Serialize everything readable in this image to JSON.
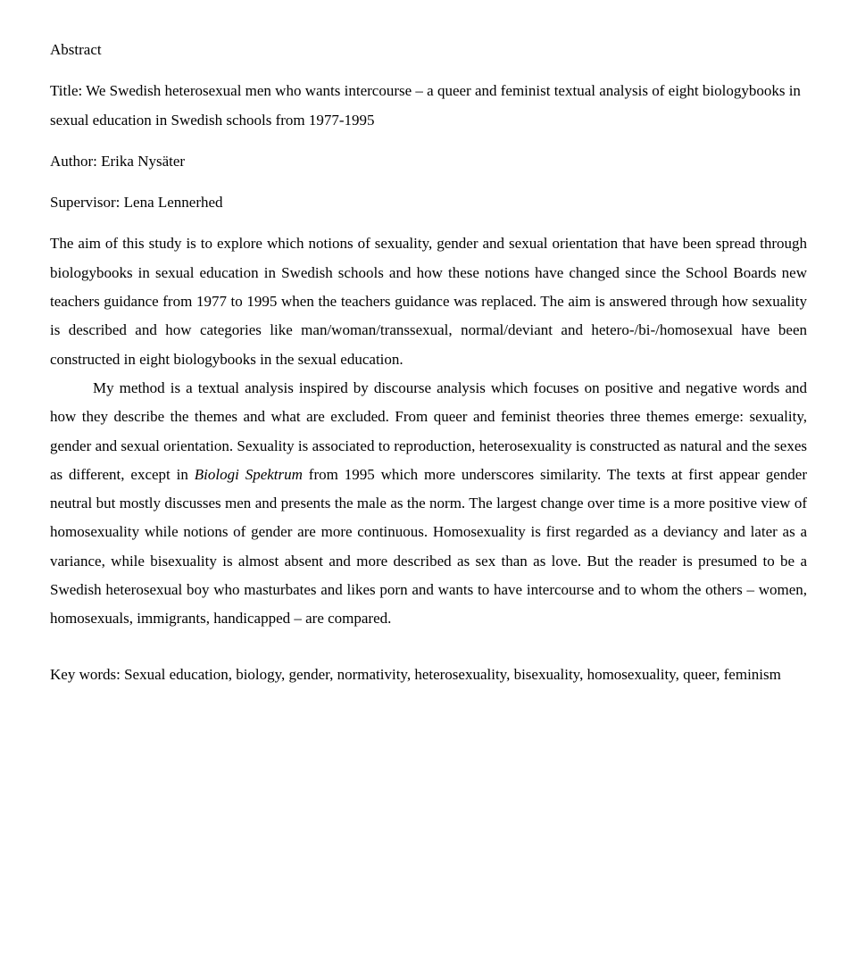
{
  "abstract_label": "Abstract",
  "title_line": "Title: We Swedish heterosexual men who wants intercourse – a queer and feminist textual analysis of eight biologybooks in sexual education in Swedish schools from 1977-1995",
  "author_line": "Author: Erika Nysäter",
  "supervisor_line": "Supervisor: Lena Lennerhed",
  "para1": "The aim of this study is to explore which notions of sexuality, gender and sexual orientation that have been spread through biologybooks in sexual education in Swedish schools and how these notions have changed since the School Boards new teachers guidance from 1977 to 1995 when the teachers guidance was replaced. The aim is answered through how sexuality is described and how categories like man/woman/transsexual, normal/deviant and hetero-/bi-/homosexual have been constructed in eight biologybooks in the sexual education.",
  "para2_a": "My method is a textual analysis inspired by discourse analysis which focuses on positive and negative words and how they describe the themes and what are excluded. From queer and feminist theories three themes emerge: sexuality, gender and sexual orientation. Sexuality is associated to reproduction, heterosexuality is constructed as natural and the sexes as different, except in ",
  "para2_italic": "Biologi Spektrum",
  "para2_b": " from 1995 which more underscores similarity. The texts at first appear gender neutral but mostly discusses men and presents the male as the norm. The largest change over time is a more positive view of homosexuality while notions of gender are more continuous. Homosexuality is first regarded as a deviancy and later as a variance, while bisexuality is almost absent and more described as sex than as love. But the reader is presumed to be a Swedish heterosexual boy who masturbates and likes porn and wants to have intercourse and to whom the others – women, homosexuals, immigrants, handicapped – are compared.",
  "keywords_line": "Key words: Sexual education, biology, gender, normativity, heterosexuality, bisexuality, homosexuality, queer, feminism"
}
